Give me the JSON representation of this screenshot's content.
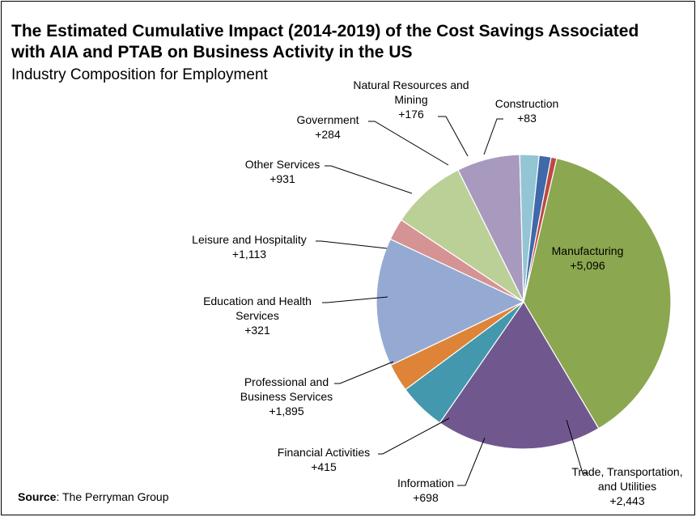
{
  "title_line1": "The Estimated Cumulative Impact (2014-2019) of the Cost Savings  Associated",
  "title_line2": "with AIA and PTAB on Business Activity in the US",
  "subtitle": "Industry Composition for Employment",
  "source_label": "Source",
  "source_text": ": The Perryman Group",
  "chart_data": {
    "type": "pie",
    "title": "The Estimated Cumulative Impact (2014-2019) of the Cost Savings  Associated with AIA and PTAB on Business Activity in the US",
    "subtitle": "Industry Composition for Employment",
    "start_angle_deg": 13,
    "slices": [
      {
        "name": "Manufacturing",
        "value": 5096,
        "value_label": "+5,096",
        "color": "#8BA74F",
        "label_lines": [
          "Manufacturing",
          "+5,096"
        ]
      },
      {
        "name": "Trade, Transportation, and Utilities",
        "value": 2443,
        "value_label": "+2,443",
        "color": "#70588F",
        "label_lines": [
          "Trade, Transportation,",
          "and Utilities",
          "+2,443"
        ]
      },
      {
        "name": "Information",
        "value": 698,
        "value_label": "+698",
        "color": "#4398AD",
        "label_lines": [
          "Information",
          "+698"
        ]
      },
      {
        "name": "Financial Activities",
        "value": 415,
        "value_label": "+415",
        "color": "#DD8439",
        "label_lines": [
          "Financial Activities",
          "+415"
        ]
      },
      {
        "name": "Professional and Business Services",
        "value": 1895,
        "value_label": "+1,895",
        "color": "#95AAD2",
        "label_lines": [
          "Professional and",
          "Business Services",
          "+1,895"
        ]
      },
      {
        "name": "Education and Health Services",
        "value": 321,
        "value_label": "+321",
        "color": "#D59393",
        "label_lines": [
          "Education and Health",
          "Services",
          "+321"
        ]
      },
      {
        "name": "Leisure and Hospitality",
        "value": 1113,
        "value_label": "+1,113",
        "color": "#BBD097",
        "label_lines": [
          "Leisure and Hospitality",
          "+1,113"
        ]
      },
      {
        "name": "Other Services",
        "value": 931,
        "value_label": "+931",
        "color": "#A89ABF",
        "label_lines": [
          "Other Services",
          "+931"
        ]
      },
      {
        "name": "Government",
        "value": 284,
        "value_label": "+284",
        "color": "#93C5D4",
        "label_lines": [
          "Government",
          "+284"
        ]
      },
      {
        "name": "Natural Resources and Mining",
        "value": 176,
        "value_label": "+176",
        "color": "#3F69A8",
        "label_lines": [
          "Natural Resources and",
          "Mining",
          "+176"
        ]
      },
      {
        "name": "Construction",
        "value": 83,
        "value_label": "+83",
        "color": "#BE4843",
        "label_lines": [
          "Construction",
          "+83"
        ]
      }
    ]
  }
}
